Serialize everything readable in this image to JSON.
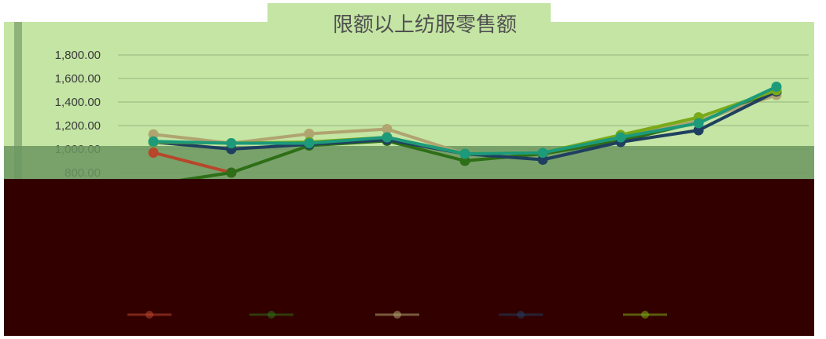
{
  "chart_data": {
    "type": "line",
    "title": "限额以上纺服零售额",
    "xlabel": "",
    "ylabel": "",
    "ylim": [
      600,
      1900
    ],
    "y_ticks": [
      "1,800.00",
      "1,600.00",
      "1,400.00",
      "1,200.00",
      "1,000.00",
      "800.00"
    ],
    "y_tick_values": [
      1800,
      1600,
      1400,
      1200,
      1000,
      800
    ],
    "grid": true,
    "legend_position": "bottom",
    "x": [
      1,
      2,
      3,
      4,
      5,
      6,
      7,
      8,
      9
    ],
    "series": [
      {
        "color": "#b8462a",
        "values": [
          970,
          800,
          null,
          null,
          null,
          null,
          null,
          null,
          null
        ]
      },
      {
        "color": "#2e6e17",
        "values": [
          700,
          800,
          1030,
          1070,
          900,
          960,
          1070,
          1230,
          1480
        ]
      },
      {
        "color": "#b0a470",
        "values": [
          1125,
          1050,
          1130,
          1170,
          960,
          975,
          1100,
          1240,
          1460
        ]
      },
      {
        "color": "#1f3f60",
        "values": [
          1060,
          1000,
          1040,
          1080,
          960,
          910,
          1060,
          1160,
          1490
        ]
      },
      {
        "color": "#7aaa18",
        "values": [
          1060,
          1050,
          1060,
          1100,
          960,
          970,
          1120,
          1270,
          1500
        ]
      },
      {
        "color": "#1c9a7a",
        "values": [
          1065,
          1050,
          1050,
          1100,
          960,
          970,
          1100,
          1220,
          1530
        ]
      }
    ]
  },
  "colors": {
    "plot_bg": "#c4e5a4",
    "overlay_dark": "#6b9760",
    "lower_band": "#330000",
    "gridline": "#9fbf85"
  }
}
